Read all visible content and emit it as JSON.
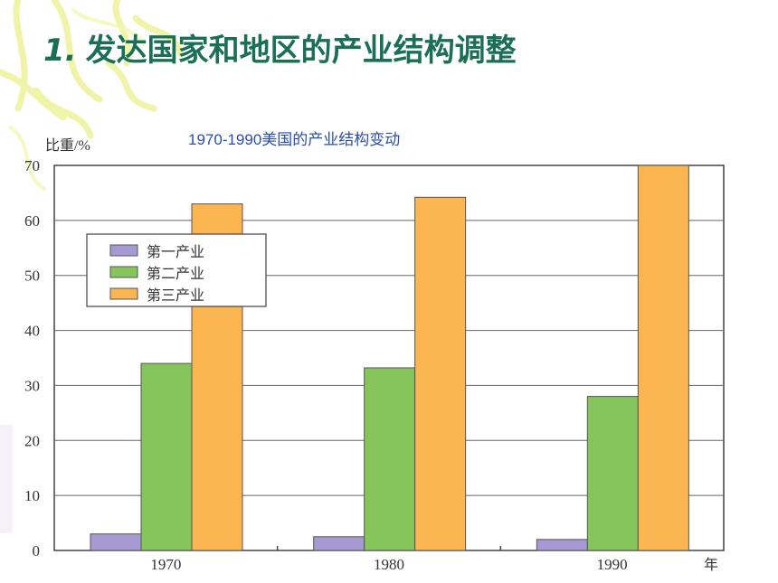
{
  "slide": {
    "number": "1.",
    "title": "发达国家和地区的产业结构调整"
  },
  "chart_data": {
    "type": "bar",
    "title": "1970-1990美国的产业结构变动",
    "ylabel": "比重/%",
    "xlabel": "年",
    "ylim": [
      0,
      70
    ],
    "yticks": [
      0,
      10,
      20,
      30,
      40,
      50,
      60,
      70
    ],
    "categories": [
      "1970",
      "1980",
      "1990"
    ],
    "series": [
      {
        "name": "第一产业",
        "values": [
          3,
          2.5,
          2
        ],
        "color": "#a69ad4"
      },
      {
        "name": "第二产业",
        "values": [
          34,
          33.2,
          28
        ],
        "color": "#86c45c"
      },
      {
        "name": "第三产业",
        "values": [
          63,
          64.2,
          70
        ],
        "color": "#fbb651"
      }
    ],
    "grid": true,
    "legend_position": "upper-left"
  },
  "colors": {
    "title": "#1a6f56",
    "chart_title": "#2b4fa8",
    "decoration": "#f3f6a0"
  }
}
